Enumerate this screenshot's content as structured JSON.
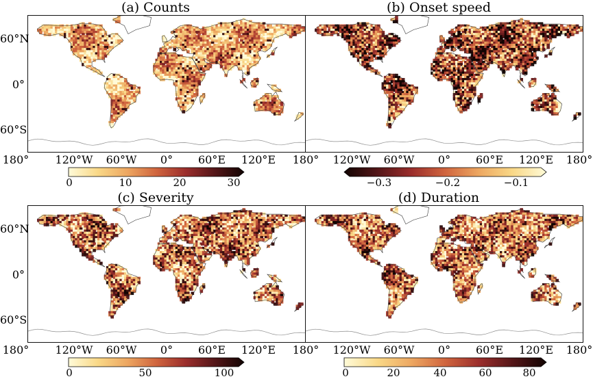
{
  "panels": [
    {
      "title": "(a) Counts",
      "palette": "heat",
      "colorbar_ticks": [
        "0",
        "10",
        "20",
        "30"
      ]
    },
    {
      "title": "(b) Onset speed",
      "palette": "heat_reversed",
      "colorbar_ticks": [
        "−0.3",
        "−0.2",
        "−0.1"
      ]
    },
    {
      "title": "(c) Severity",
      "palette": "heat",
      "colorbar_ticks": [
        "0",
        "50",
        "100"
      ]
    },
    {
      "title": "(d) Duration",
      "palette": "heat",
      "colorbar_ticks": [
        "0",
        "20",
        "40",
        "60",
        "80"
      ]
    }
  ],
  "lat_labels": [
    "60°N",
    "0°",
    "60°S"
  ],
  "lon_labels": [
    "180°",
    "120°W",
    "60°W",
    "0°",
    "60°E",
    "120°E",
    "180°"
  ],
  "colors": {
    "frame": "#111111",
    "coast": "#333333",
    "antarctica_line": "#8c8c8c",
    "palette_stops": [
      "#fffbd8",
      "#f9d887",
      "#eda761",
      "#d0653e",
      "#9b2e2c",
      "#541618",
      "#120402"
    ]
  }
}
